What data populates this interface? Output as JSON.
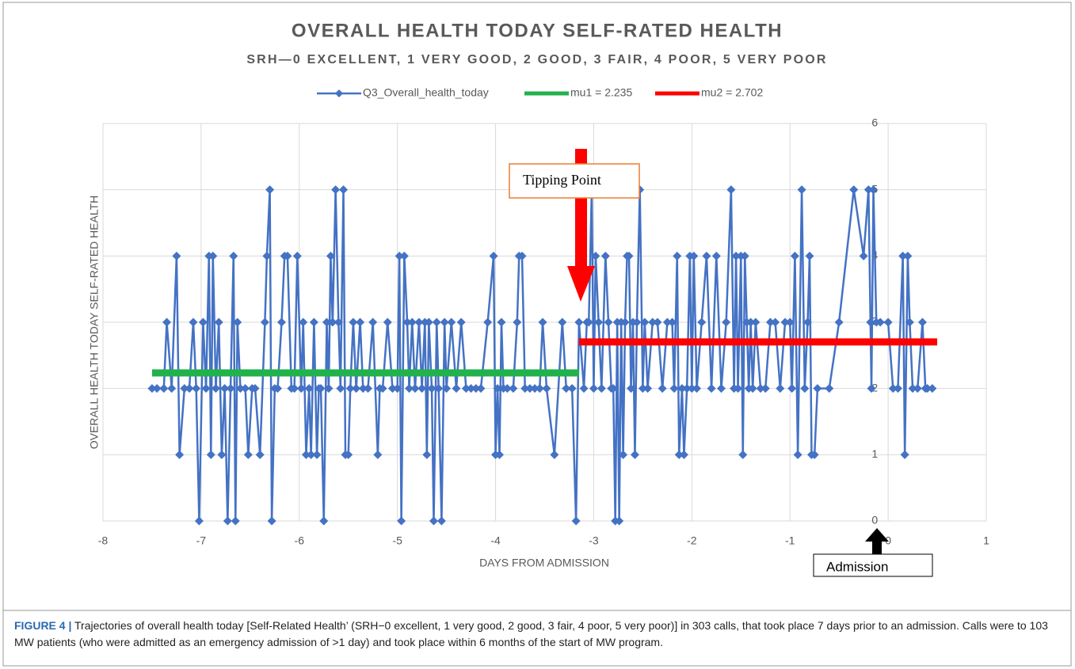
{
  "chart_data": {
    "type": "line",
    "title": "OVERALL HEALTH TODAY SELF-RATED HEALTH",
    "subtitle": "SRH—0 EXCELLENT, 1 VERY GOOD, 2 GOOD, 3 FAIR, 4 POOR, 5 VERY POOR",
    "x_label": "DAYS FROM ADMISSION",
    "y_label": "OVERALL HEALTH TODAY  SELF-RATED HEALTH",
    "xlim": [
      -8,
      1
    ],
    "xticks": [
      -8,
      -7,
      -6,
      -5,
      -4,
      -3,
      -2,
      -1,
      0,
      1
    ],
    "ylim": [
      0,
      6
    ],
    "yticks": [
      0,
      1,
      2,
      3,
      4,
      5,
      6
    ],
    "grid": true,
    "legend": "top",
    "annotations": [
      "Tipping Point",
      "Admission"
    ],
    "series": [
      {
        "name": "Q3_Overall_health_today",
        "color": "#4472c4",
        "marker": "diamond",
        "x": [
          -7.5,
          -7.45,
          -7.38,
          -7.35,
          -7.3,
          -7.25,
          -7.22,
          -7.17,
          -7.12,
          -7.08,
          -7.05,
          -7.02,
          -6.98,
          -6.95,
          -6.92,
          -6.9,
          -6.88,
          -6.85,
          -6.82,
          -6.79,
          -6.76,
          -6.73,
          -6.7,
          -6.67,
          -6.65,
          -6.63,
          -6.6,
          -6.55,
          -6.52,
          -6.48,
          -6.45,
          -6.4,
          -6.35,
          -6.33,
          -6.3,
          -6.28,
          -6.25,
          -6.22,
          -6.18,
          -6.15,
          -6.12,
          -6.08,
          -6.05,
          -6.02,
          -5.98,
          -5.96,
          -5.93,
          -5.9,
          -5.88,
          -5.85,
          -5.82,
          -5.8,
          -5.78,
          -5.75,
          -5.72,
          -5.7,
          -5.68,
          -5.66,
          -5.63,
          -5.6,
          -5.58,
          -5.55,
          -5.53,
          -5.5,
          -5.48,
          -5.45,
          -5.42,
          -5.38,
          -5.35,
          -5.3,
          -5.25,
          -5.2,
          -5.18,
          -5.15,
          -5.1,
          -5.05,
          -5.0,
          -4.98,
          -4.96,
          -4.93,
          -4.9,
          -4.88,
          -4.85,
          -4.82,
          -4.78,
          -4.75,
          -4.72,
          -4.7,
          -4.68,
          -4.65,
          -4.63,
          -4.6,
          -4.58,
          -4.55,
          -4.52,
          -4.5,
          -4.45,
          -4.4,
          -4.35,
          -4.3,
          -4.25,
          -4.2,
          -4.15,
          -4.08,
          -4.02,
          -4.0,
          -3.98,
          -3.96,
          -3.94,
          -3.92,
          -3.88,
          -3.82,
          -3.78,
          -3.76,
          -3.73,
          -3.7,
          -3.65,
          -3.6,
          -3.55,
          -3.52,
          -3.48,
          -3.4,
          -3.32,
          -3.28,
          -3.22,
          -3.18,
          -3.15,
          -3.1,
          -3.07,
          -3.05,
          -3.02,
          -3.0,
          -2.98,
          -2.95,
          -2.92,
          -2.88,
          -2.85,
          -2.82,
          -2.8,
          -2.78,
          -2.76,
          -2.74,
          -2.72,
          -2.7,
          -2.68,
          -2.66,
          -2.64,
          -2.62,
          -2.6,
          -2.58,
          -2.56,
          -2.53,
          -2.5,
          -2.48,
          -2.45,
          -2.4,
          -2.35,
          -2.3,
          -2.25,
          -2.2,
          -2.18,
          -2.15,
          -2.13,
          -2.1,
          -2.08,
          -2.05,
          -2.02,
          -2.0,
          -1.98,
          -1.95,
          -1.9,
          -1.85,
          -1.8,
          -1.75,
          -1.7,
          -1.65,
          -1.6,
          -1.57,
          -1.55,
          -1.53,
          -1.5,
          -1.48,
          -1.46,
          -1.44,
          -1.42,
          -1.4,
          -1.38,
          -1.35,
          -1.3,
          -1.25,
          -1.2,
          -1.15,
          -1.1,
          -1.05,
          -1.0,
          -0.98,
          -0.95,
          -0.92,
          -0.88,
          -0.85,
          -0.82,
          -0.8,
          -0.78,
          -0.75,
          -0.72,
          -0.6,
          -0.5,
          -0.35,
          -0.25,
          -0.2,
          -0.18,
          -0.17,
          -0.15,
          -0.12,
          -0.08,
          0.0,
          0.05,
          0.1,
          0.15,
          0.17,
          0.2,
          0.22,
          0.25,
          0.3,
          0.35,
          0.38,
          0.4,
          0.45
        ],
        "values": [
          2,
          2,
          2,
          3,
          2,
          4,
          1,
          2,
          2,
          3,
          2,
          0,
          3,
          2,
          4,
          1,
          4,
          2,
          3,
          1,
          2,
          0,
          2,
          4,
          0,
          3,
          2,
          2,
          1,
          2,
          2,
          1,
          3,
          4,
          5,
          0,
          2,
          2,
          3,
          4,
          4,
          2,
          2,
          4,
          2,
          3,
          1,
          2,
          1,
          3,
          1,
          2,
          2,
          0,
          3,
          2,
          4,
          3,
          5,
          3,
          2,
          5,
          1,
          1,
          2,
          3,
          2,
          3,
          2,
          2,
          3,
          1,
          2,
          2,
          3,
          2,
          2,
          4,
          0,
          4,
          3,
          2,
          3,
          2,
          3,
          2,
          3,
          1,
          3,
          2,
          0,
          3,
          2,
          0,
          3,
          2,
          3,
          2,
          3,
          2,
          2,
          2,
          2,
          3,
          4,
          1,
          2,
          1,
          3,
          2,
          2,
          2,
          3,
          4,
          4,
          2,
          2,
          2,
          2,
          3,
          2,
          1,
          3,
          2,
          2,
          0,
          3,
          2,
          3,
          3,
          5,
          2,
          4,
          3,
          2,
          4,
          3,
          2,
          2,
          0,
          3,
          0,
          3,
          1,
          3,
          4,
          4,
          2,
          3,
          1,
          3,
          5,
          2,
          3,
          2,
          3,
          3,
          2,
          3,
          3,
          2,
          4,
          1,
          2,
          1,
          2,
          4,
          2,
          4,
          2,
          3,
          4,
          2,
          4,
          2,
          3,
          5,
          2,
          4,
          2,
          4,
          1,
          4,
          3,
          2,
          3,
          2,
          3,
          2,
          2,
          3,
          3,
          2,
          3,
          3,
          2,
          4,
          1,
          5,
          2,
          3,
          4,
          1,
          1,
          2,
          2,
          3,
          5,
          4,
          5,
          3,
          2,
          5,
          3,
          3,
          3,
          2,
          2,
          4,
          1,
          4,
          3,
          2,
          2,
          3,
          2,
          2,
          2
        ]
      },
      {
        "name": "mu1 = 2.235",
        "color": "#21b24b",
        "x": [
          -7.5,
          -3.15
        ],
        "values": [
          2.235,
          2.235
        ]
      },
      {
        "name": "mu2 = 2.702",
        "color": "#ff0000",
        "x": [
          -3.15,
          0.5
        ],
        "values": [
          2.702,
          2.702
        ]
      }
    ]
  },
  "caption": {
    "label": "FIGURE 4 |",
    "text": "Trajectories of overall health today [Self-Related Health’ (SRH−0 excellent, 1 very good, 2 good, 3 fair, 4 poor, 5 very poor)] in 303 calls, that took place 7 days prior to an admission. Calls were to 103 MW patients (who were admitted as an emergency admission of >1 day) and took place within 6 months of the start of MW program."
  }
}
